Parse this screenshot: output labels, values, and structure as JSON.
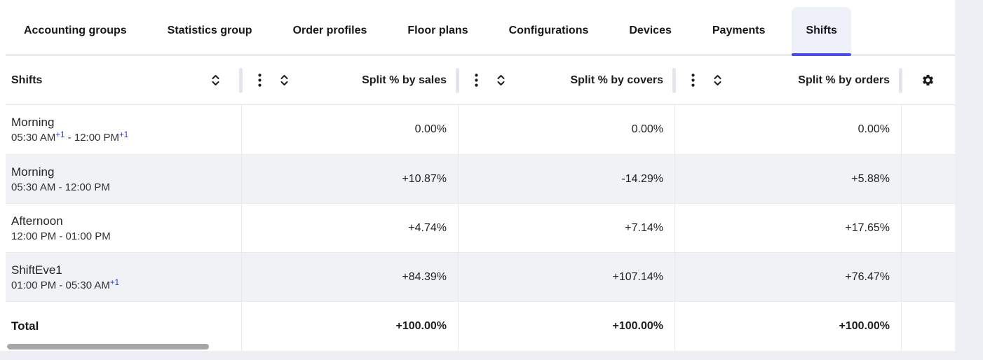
{
  "tabs": {
    "items": [
      {
        "label": "Accounting groups",
        "selected": false
      },
      {
        "label": "Statistics group",
        "selected": false
      },
      {
        "label": "Order profiles",
        "selected": false
      },
      {
        "label": "Floor plans",
        "selected": false
      },
      {
        "label": "Configurations",
        "selected": false
      },
      {
        "label": "Devices",
        "selected": false
      },
      {
        "label": "Payments",
        "selected": false
      },
      {
        "label": "Shifts",
        "selected": true
      }
    ]
  },
  "table": {
    "headers": {
      "shifts": "Shifts",
      "sales": "Split % by sales",
      "covers": "Split % by covers",
      "orders": "Split % by orders"
    },
    "rows": [
      {
        "name": "Morning",
        "time": [
          {
            "text": "05:30 AM"
          },
          {
            "text": "+1",
            "sup": true
          },
          {
            "text": " - 12:00 PM"
          },
          {
            "text": "+1",
            "sup": true
          }
        ],
        "sales": "0.00%",
        "covers": "0.00%",
        "orders": "0.00%",
        "striped": false
      },
      {
        "name": "Morning",
        "time": [
          {
            "text": "05:30 AM - 12:00 PM"
          }
        ],
        "sales": "+10.87%",
        "covers": "-14.29%",
        "orders": "+5.88%",
        "striped": true
      },
      {
        "name": "Afternoon",
        "time": [
          {
            "text": "12:00 PM - 01:00 PM"
          }
        ],
        "sales": "+4.74%",
        "covers": "+7.14%",
        "orders": "+17.65%",
        "striped": false
      },
      {
        "name": "ShiftEve1",
        "time": [
          {
            "text": "01:00 PM - 05:30 AM"
          },
          {
            "text": "+1",
            "sup": true
          }
        ],
        "sales": "+84.39%",
        "covers": "+107.14%",
        "orders": "+76.47%",
        "striped": true
      }
    ],
    "total": {
      "label": "Total",
      "sales": "+100.00%",
      "covers": "+100.00%",
      "orders": "+100.00%"
    }
  },
  "icons": {
    "column_sort": "unfold-chevrons-up-down",
    "column_menu": "vertical-ellipsis",
    "settings": "gear",
    "column_divider": "resize-handle-pill"
  },
  "colors": {
    "accent_underline": "#4d4de3",
    "selected_tab_bg": "#eef0fa",
    "stripe_row_bg": "#f1f2f6",
    "superscript_blue": "#2a37e8",
    "page_background": "#edeff5",
    "scrollbar_thumb": "#a6a6a9"
  }
}
